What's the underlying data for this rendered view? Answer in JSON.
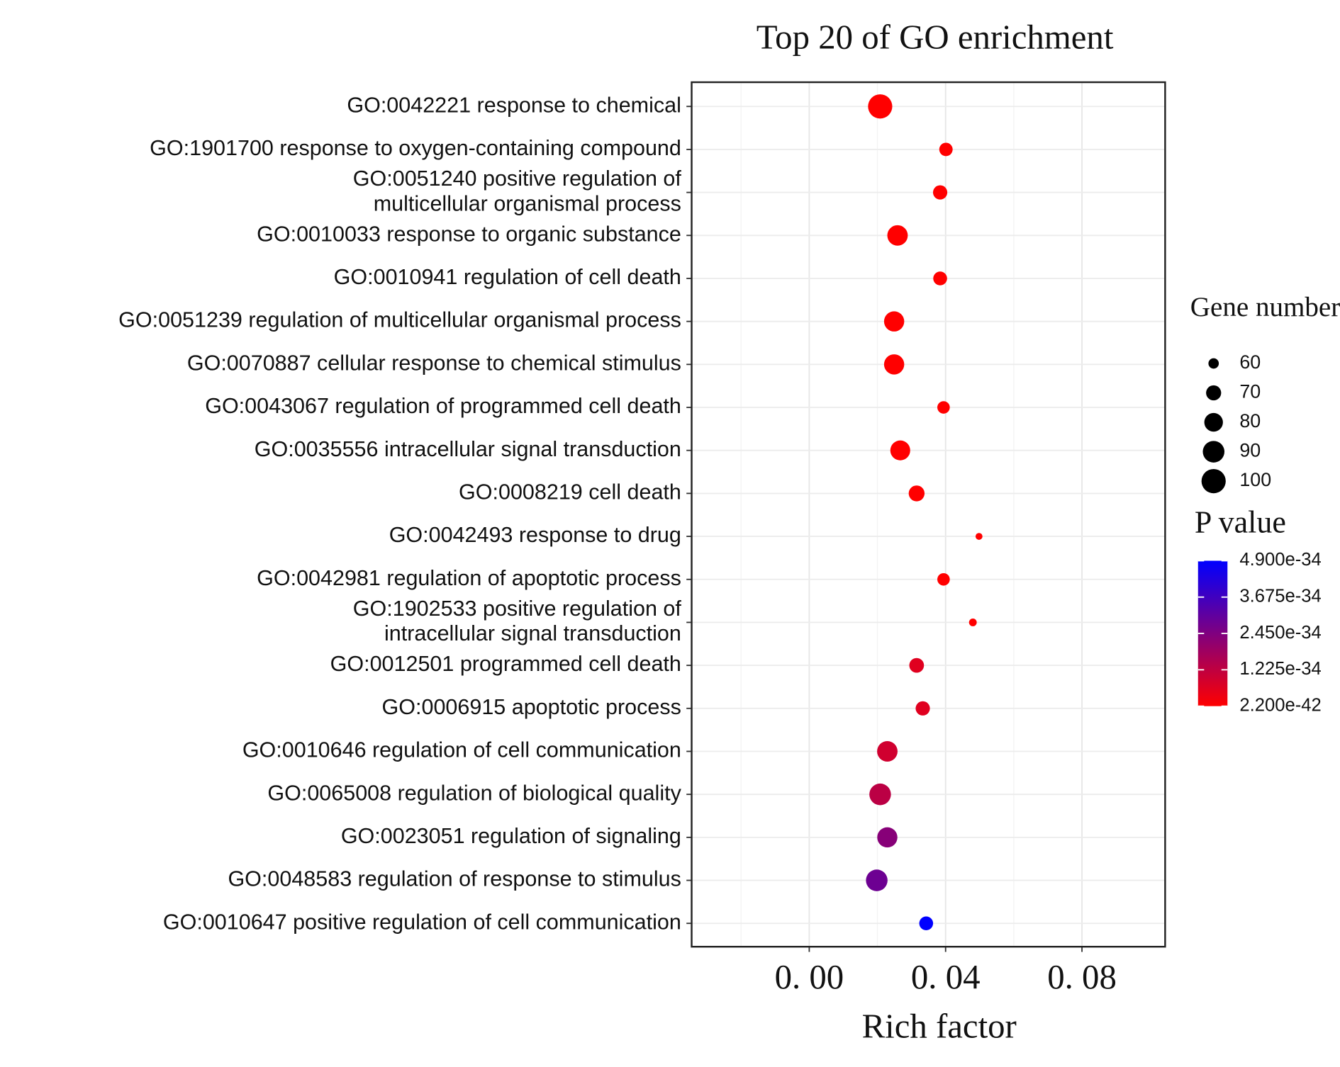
{
  "chart_data": {
    "type": "scatter",
    "title": "Top 20 of GO enrichment",
    "x_label": "Rich factor",
    "categories": [
      [
        "GO:0042221 response to chemical"
      ],
      [
        "GO:1901700 response to oxygen-containing compound"
      ],
      [
        "GO:0051240 positive regulation of",
        "multicellular organismal process"
      ],
      [
        "GO:0010033 response to organic substance"
      ],
      [
        "GO:0010941 regulation of cell death"
      ],
      [
        "GO:0051239 regulation of multicellular organismal process"
      ],
      [
        "GO:0070887 cellular response to chemical stimulus"
      ],
      [
        "GO:0043067 regulation of programmed cell death"
      ],
      [
        "GO:0035556 intracellular signal transduction"
      ],
      [
        "GO:0008219 cell death"
      ],
      [
        "GO:0042493 response to drug"
      ],
      [
        "GO:0042981 regulation of apoptotic process"
      ],
      [
        "GO:1902533 positive regulation of",
        "intracellular signal transduction"
      ],
      [
        "GO:0012501 programmed cell death"
      ],
      [
        "GO:0006915 apoptotic process"
      ],
      [
        "GO:0010646 regulation of cell communication"
      ],
      [
        "GO:0065008 regulation of biological quality"
      ],
      [
        "GO:0023051 regulation of signaling"
      ],
      [
        "GO:0048583 regulation of response to stimulus"
      ],
      [
        "GO:0010647 positive regulation of cell communication"
      ]
    ],
    "x": [
      0.0208,
      0.0401,
      0.0384,
      0.0259,
      0.0384,
      0.0249,
      0.0249,
      0.0394,
      0.0267,
      0.0315,
      0.0498,
      0.0394,
      0.048,
      0.0315,
      0.0333,
      0.0229,
      0.0208,
      0.0229,
      0.0198,
      0.0343
    ],
    "gene_number": [
      100,
      66,
      68,
      86,
      67,
      85,
      85,
      64,
      84,
      72,
      55,
      64,
      56,
      69,
      68,
      86,
      90,
      85,
      90,
      67
    ],
    "p_value": [
      2.2e-42,
      2.2e-42,
      2.2e-42,
      2.2e-42,
      2.2e-42,
      2.2e-42,
      2.2e-42,
      2.2e-42,
      2.2e-42,
      2.2e-42,
      2.2e-42,
      2.2e-42,
      2.2e-42,
      6e-35,
      6e-35,
      9e-35,
      1.3e-34,
      2.3e-34,
      2.8e-34,
      4.9e-34
    ],
    "xlim": [
      -0.0345,
      0.1044
    ],
    "xticks": [
      {
        "value": 0,
        "label": "0. 00"
      },
      {
        "value": 0.04,
        "label": "0. 04"
      },
      {
        "value": 0.08,
        "label": "0. 08"
      }
    ],
    "grid": true,
    "size_legend": {
      "title": "Gene number",
      "values": [
        60,
        70,
        80,
        90,
        100
      ]
    },
    "color_legend": {
      "title": "P value",
      "low_color": "#ff0000",
      "high_color": "#0000ff",
      "ticks": [
        {
          "value": 4.9e-34,
          "label": "4.900e-34"
        },
        {
          "value": 3.675e-34,
          "label": "3.675e-34"
        },
        {
          "value": 2.45e-34,
          "label": "2.450e-34"
        },
        {
          "value": 1.225e-34,
          "label": "1.225e-34"
        },
        {
          "value": 2.2e-42,
          "label": "2.200e-42"
        }
      ]
    }
  }
}
